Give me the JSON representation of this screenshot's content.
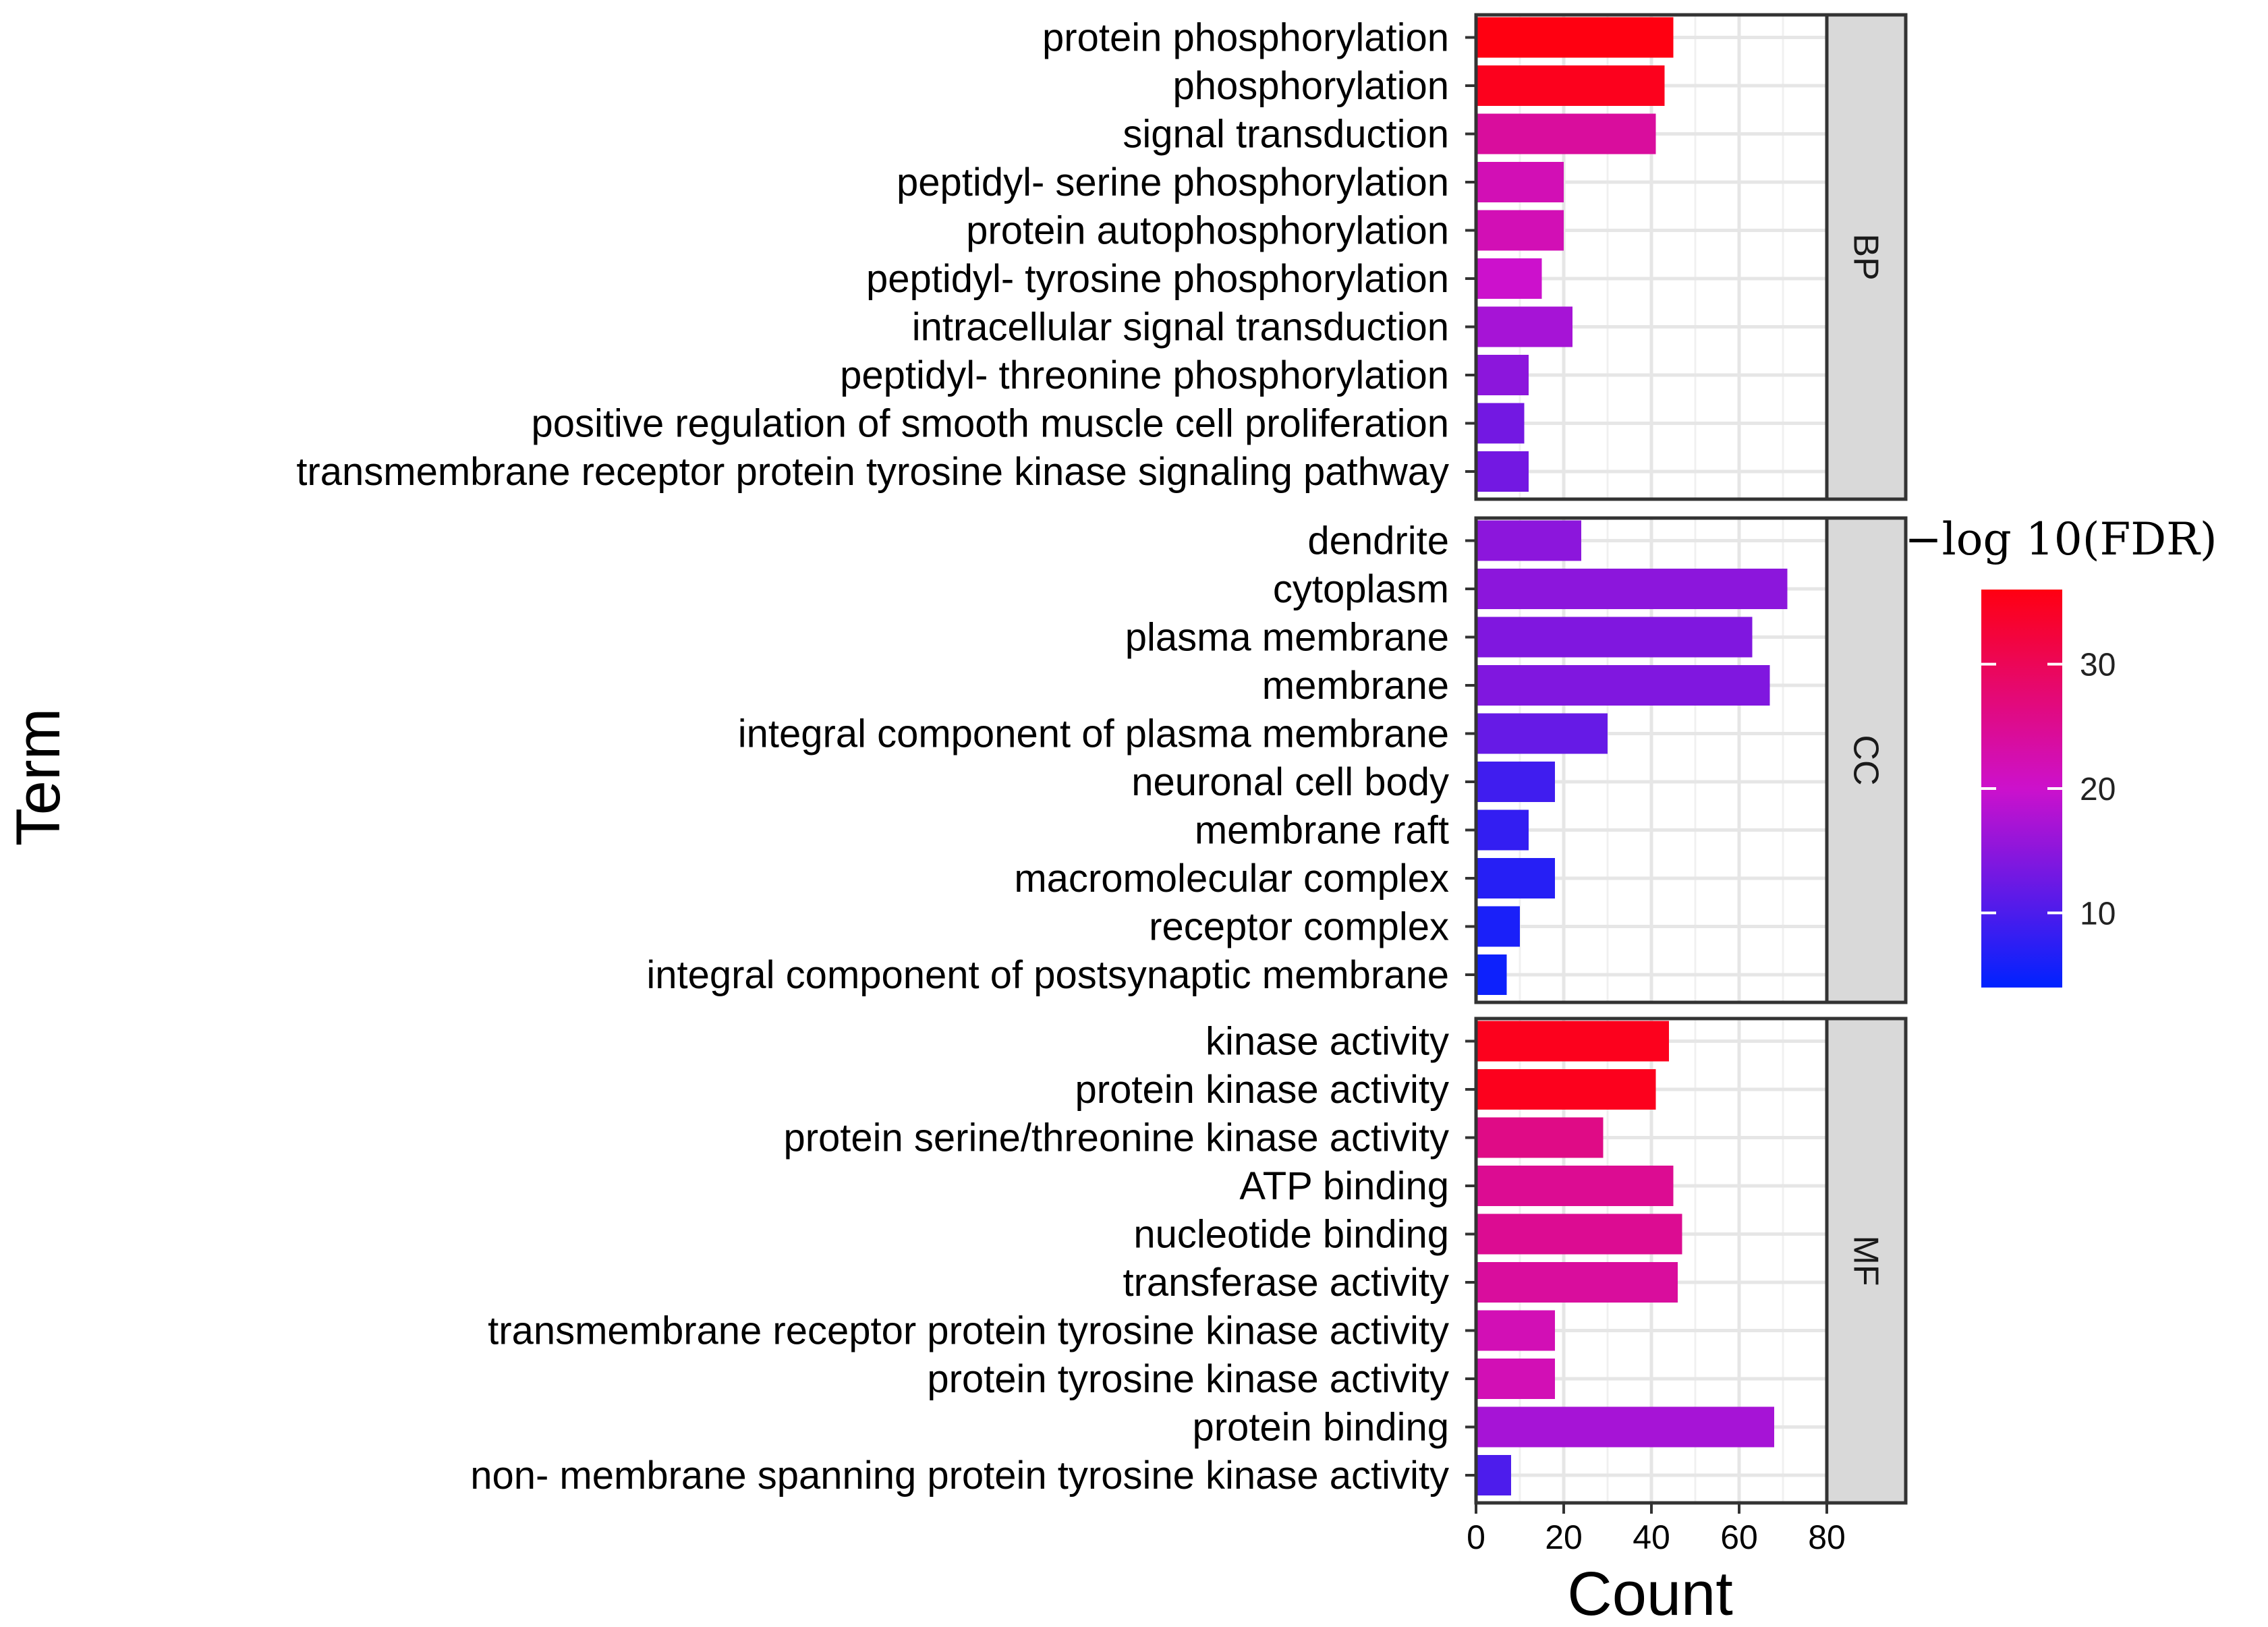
{
  "chart_data": {
    "type": "bar",
    "orientation": "horizontal",
    "xlabel": "Count",
    "ylabel": "Term",
    "xlim": [
      0,
      80
    ],
    "xticks": [
      0,
      20,
      40,
      60,
      80
    ],
    "grid": true,
    "legend": {
      "title": "−log 10(FDR)",
      "type": "colorbar",
      "position": "right",
      "range": [
        4,
        36
      ],
      "ticks": [
        10,
        20,
        30
      ],
      "low_color": "#0022ff",
      "mid_color": "#cc11cc",
      "high_color": "#ff0011"
    },
    "facets": [
      {
        "name": "BP",
        "terms": [
          "protein phosphorylation",
          "phosphorylation",
          "signal transduction",
          "peptidyl- serine phosphorylation",
          "protein autophosphorylation",
          "peptidyl- tyrosine phosphorylation",
          "intracellular signal transduction",
          "peptidyl- threonine phosphorylation",
          "positive regulation of smooth muscle cell proliferation",
          "transmembrane receptor protein tyrosine kinase signaling pathway"
        ],
        "counts": [
          45,
          43,
          41,
          20,
          20,
          15,
          22,
          12,
          11,
          12
        ],
        "neg_log10_fdr": [
          36,
          35,
          24,
          22,
          22,
          20,
          17,
          15,
          13,
          13
        ]
      },
      {
        "name": "CC",
        "terms": [
          "dendrite",
          "cytoplasm",
          "plasma membrane",
          "membrane",
          "integral component of plasma membrane",
          "neuronal cell body",
          "membrane raft",
          "macromolecular complex",
          "receptor complex",
          "integral component of postsynaptic membrane"
        ],
        "counts": [
          24,
          71,
          63,
          67,
          30,
          18,
          12,
          18,
          10,
          7
        ],
        "neg_log10_fdr": [
          15,
          15,
          14,
          14,
          12,
          9,
          8,
          7,
          6,
          5
        ]
      },
      {
        "name": "MF",
        "terms": [
          "kinase activity",
          "protein kinase activity",
          "protein serine/threonine kinase activity",
          "ATP binding",
          "nucleotide binding",
          "transferase activity",
          "transmembrane receptor protein tyrosine kinase activity",
          "protein tyrosine kinase activity",
          "protein binding",
          "non- membrane spanning protein tyrosine kinase activity"
        ],
        "counts": [
          44,
          41,
          29,
          45,
          47,
          46,
          18,
          18,
          68,
          8
        ],
        "neg_log10_fdr": [
          35,
          35,
          26,
          25,
          25,
          24,
          22,
          22,
          17,
          10
        ]
      }
    ]
  }
}
